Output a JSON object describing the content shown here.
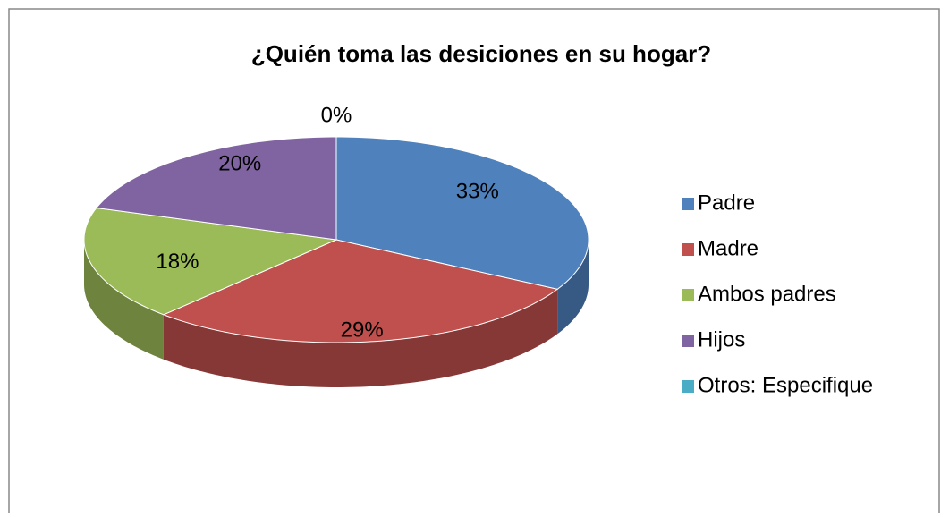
{
  "chart_data": {
    "type": "pie",
    "title": "¿Quién toma las desiciones en su hogar?",
    "categories": [
      "Padre",
      "Madre",
      "Ambos padres",
      "Hijos",
      "Otros: Especifique"
    ],
    "values": [
      33,
      29,
      18,
      20,
      0
    ],
    "value_labels": [
      "33%",
      "29%",
      "18%",
      "20%",
      "0%"
    ],
    "colors": [
      "#4f81bd",
      "#c0504d",
      "#9bbb59",
      "#8064a2",
      "#4bacc6"
    ],
    "legend": "right"
  }
}
